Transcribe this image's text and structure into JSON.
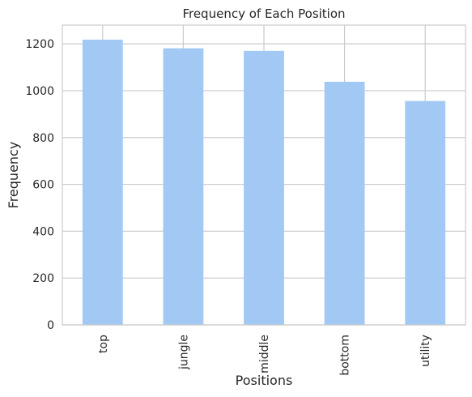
{
  "chart_data": {
    "type": "bar",
    "title": "Frequency of Each Position",
    "xlabel": "Positions",
    "ylabel": "Frequency",
    "categories": [
      "top",
      "jungle",
      "middle",
      "bottom",
      "utility"
    ],
    "values": [
      1218,
      1181,
      1170,
      1038,
      956
    ],
    "ylim": [
      0,
      1280
    ],
    "yticks": [
      0,
      200,
      400,
      600,
      800,
      1000,
      1200
    ],
    "grid": true,
    "bar_color": "#a1c9f4",
    "grid_color": "#cccccc",
    "spine_color": "#cccccc"
  }
}
